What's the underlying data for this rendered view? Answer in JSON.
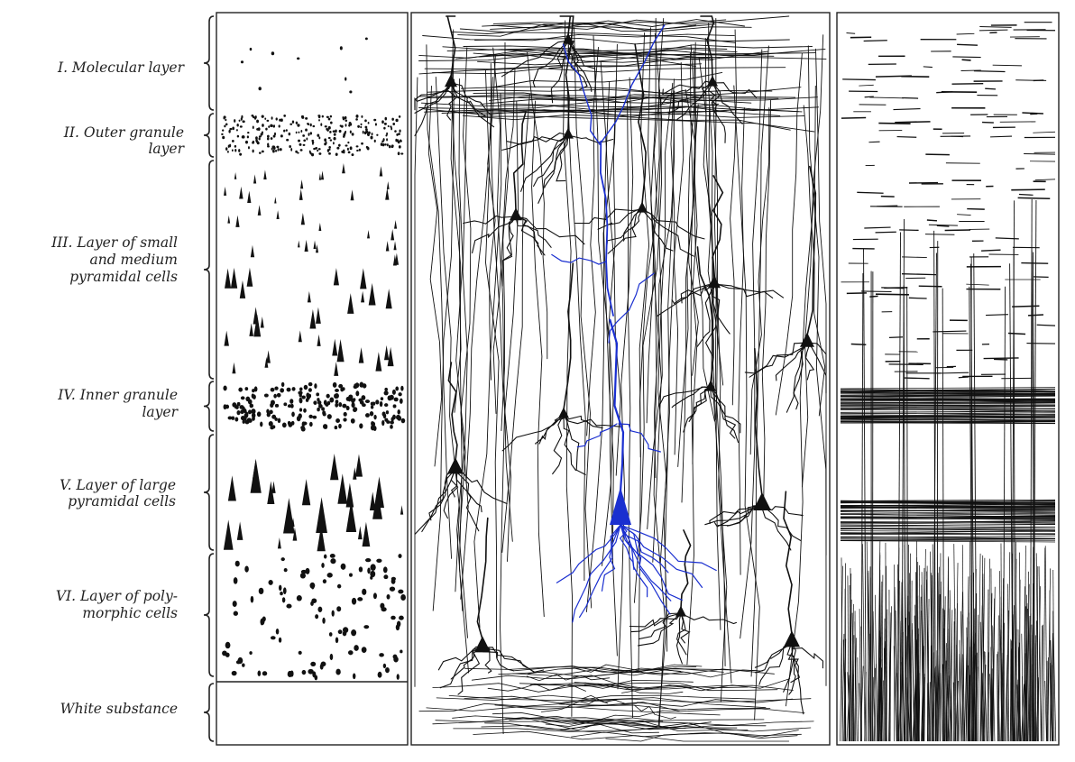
{
  "layers": [
    {
      "numeral": "I.",
      "lines": [
        "Molecular layer"
      ]
    },
    {
      "numeral": "II.",
      "lines": [
        "Outer granule",
        "layer"
      ]
    },
    {
      "numeral": "III.",
      "lines": [
        "Layer of small",
        "and medium",
        "pyramidal cells"
      ]
    },
    {
      "numeral": "IV.",
      "lines": [
        "Inner granule",
        "layer"
      ]
    },
    {
      "numeral": "V.",
      "lines": [
        "Layer of large",
        "pyramidal cells"
      ]
    },
    {
      "numeral": "VI.",
      "lines": [
        "Layer of poly-",
        "morphic cells"
      ]
    },
    {
      "numeral": "",
      "lines": [
        "White substance"
      ]
    }
  ],
  "colors": {
    "ink": "#111111",
    "highlight": "#1a2fd0",
    "paper": "#ffffff"
  }
}
